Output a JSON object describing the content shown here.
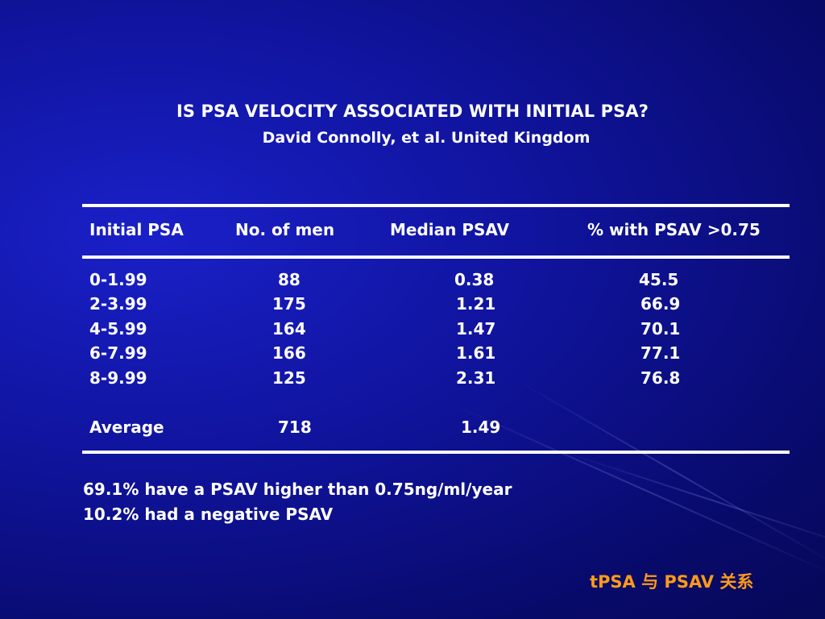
{
  "slide": {
    "title": "IS PSA VELOCITY ASSOCIATED WITH INITIAL PSA?",
    "subtitle": "David Connolly, et al. United Kingdom",
    "background_color": "#10149e",
    "accent_color": "#ff9a1a"
  },
  "table": {
    "headers": [
      "Initial PSA",
      "No. of men",
      "Median PSAV",
      "% with PSAV >0.75"
    ],
    "rows": [
      [
        "0-1.99",
        "88",
        "0.38",
        "45.5"
      ],
      [
        "2-3.99",
        "175",
        "1.21",
        "66.9"
      ],
      [
        "4-5.99",
        "164",
        "1.47",
        "70.1"
      ],
      [
        "6-7.99",
        "166",
        "1.61",
        "77.1"
      ],
      [
        "8-9.99",
        "125",
        "2.31",
        "76.8"
      ]
    ],
    "average": {
      "label": "Average",
      "men": "718",
      "median": "1.49"
    }
  },
  "notes": [
    "69.1% have a PSAV higher than 0.75ng/ml/year",
    "10.2% had a negative PSAV"
  ],
  "footer": "tPSA 与 PSAV 关系"
}
